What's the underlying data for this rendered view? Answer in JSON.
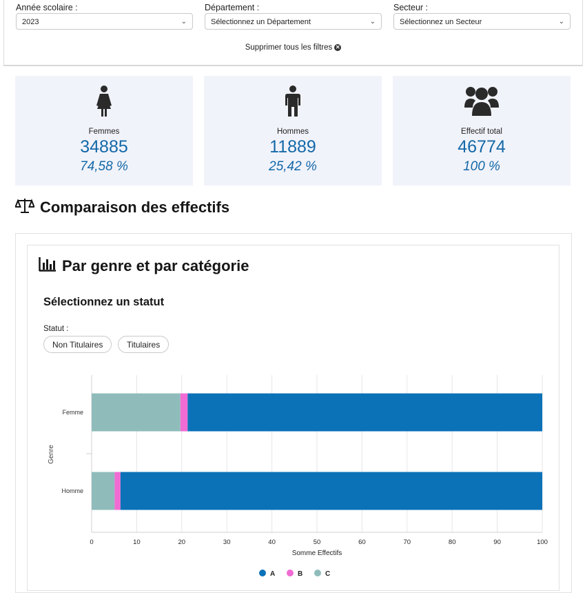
{
  "filters": {
    "year": {
      "label": "Année scolaire :",
      "value": "2023"
    },
    "department": {
      "label": "Département :",
      "value": "Sélectionnez un Département"
    },
    "sector": {
      "label": "Secteur :",
      "value": "Sélectionnez un Secteur"
    },
    "clear_all": "Supprimer tous les filtres"
  },
  "stats": [
    {
      "label": "Femmes",
      "value": "34885",
      "percent": "74,58 %",
      "icon": "female-icon"
    },
    {
      "label": "Hommes",
      "value": "11889",
      "percent": "25,42 %",
      "icon": "male-icon"
    },
    {
      "label": "Effectif total",
      "value": "46774",
      "percent": "100 %",
      "icon": "group-icon"
    }
  ],
  "section": {
    "title": "Comparaison des effectifs",
    "icon": "scale-icon"
  },
  "panel": {
    "title": "Par genre et par catégorie",
    "icon": "bar-chart-icon"
  },
  "status_filter": {
    "heading": "Sélectionnez un statut",
    "label": "Statut :",
    "options": [
      "Non Titulaires",
      "Titulaires"
    ]
  },
  "colors": {
    "A": "#0b72b8",
    "B": "#f06bd3",
    "C": "#8fbcbb",
    "accent": "#1468a8"
  },
  "chart_data": {
    "type": "bar",
    "orientation": "horizontal",
    "stacked": true,
    "categories": [
      "Femme",
      "Homme"
    ],
    "series": [
      {
        "name": "C",
        "values": [
          19.7,
          5.1
        ]
      },
      {
        "name": "B",
        "values": [
          1.6,
          1.3
        ]
      },
      {
        "name": "A",
        "values": [
          78.7,
          93.6
        ]
      }
    ],
    "legend_order": [
      "A",
      "B",
      "C"
    ],
    "xlabel": "Somme Effectifs",
    "ylabel": "Genre",
    "xlim": [
      0,
      100
    ],
    "xticks": [
      0,
      10,
      20,
      30,
      40,
      50,
      60,
      70,
      80,
      90,
      100
    ],
    "grid": true,
    "legend_position": "bottom"
  }
}
